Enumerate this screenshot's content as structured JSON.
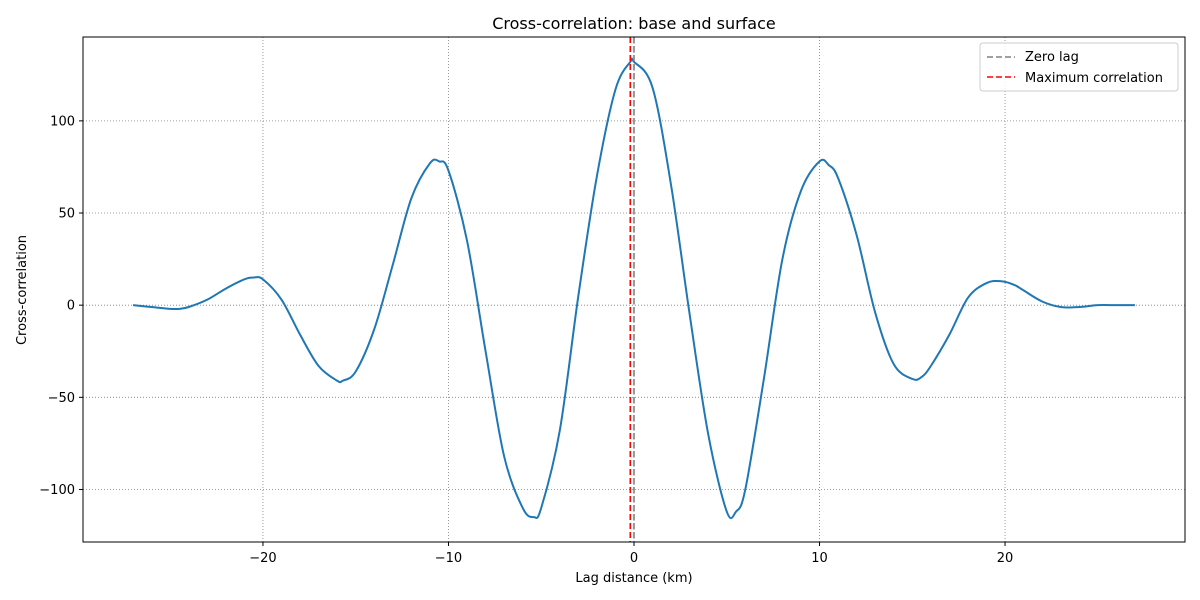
{
  "chart_data": {
    "type": "line",
    "title": "Cross-correlation: base and surface",
    "xlabel": "Lag distance (km)",
    "ylabel": "Cross-correlation",
    "xlim": [
      -29.7,
      29.7
    ],
    "ylim": [
      -128.5,
      145.5
    ],
    "xticks": [
      -20,
      -10,
      0,
      10,
      20
    ],
    "yticks": [
      -100,
      -50,
      0,
      50,
      100
    ],
    "xtick_labels": [
      "−20",
      "−10",
      "0",
      "10",
      "20"
    ],
    "ytick_labels": [
      "−100",
      "−50",
      "0",
      "50",
      "100"
    ],
    "grid": true,
    "legend_position": "top-right",
    "series": [
      {
        "color": "#1f77b4",
        "x": [
          -27.0,
          -26.0,
          -25.0,
          -24.5,
          -24.0,
          -23.0,
          -22.0,
          -21.0,
          -20.5,
          -20.0,
          -19.0,
          -18.0,
          -17.0,
          -16.0,
          -15.7,
          -15.0,
          -14.0,
          -13.0,
          -12.0,
          -11.0,
          -10.5,
          -10.0,
          -9.0,
          -8.0,
          -7.0,
          -6.0,
          -5.4,
          -5.0,
          -4.0,
          -3.0,
          -2.0,
          -1.0,
          -0.2,
          0.0,
          1.0,
          2.0,
          3.0,
          4.0,
          5.0,
          5.5,
          6.0,
          7.0,
          8.0,
          9.0,
          10.0,
          10.5,
          11.0,
          12.0,
          13.0,
          14.0,
          15.0,
          15.5,
          16.0,
          17.0,
          18.0,
          19.0,
          19.8,
          20.5,
          21.0,
          22.0,
          23.0,
          24.0,
          25.0,
          26.0,
          27.0
        ],
        "y": [
          0,
          -1,
          -2,
          -2,
          -1,
          3,
          9,
          14,
          15,
          14,
          3,
          -16,
          -33,
          -41,
          -41,
          -36,
          -13,
          22,
          58,
          77,
          78,
          73,
          35,
          -25,
          -82,
          -110,
          -115,
          -110,
          -68,
          5,
          70,
          117,
          132,
          132,
          118,
          65,
          -5,
          -70,
          -112,
          -112,
          -100,
          -40,
          25,
          62,
          78,
          76,
          69,
          38,
          -4,
          -32,
          -40,
          -39,
          -33,
          -16,
          4,
          12,
          13,
          11,
          8,
          2,
          -1,
          -1,
          0,
          0,
          0
        ]
      }
    ],
    "vlines": [
      {
        "name": "Zero lag",
        "x": 0.0,
        "color": "#808080"
      },
      {
        "name": "Maximum correlation",
        "x": -0.2,
        "color": "#ff0000"
      }
    ]
  }
}
